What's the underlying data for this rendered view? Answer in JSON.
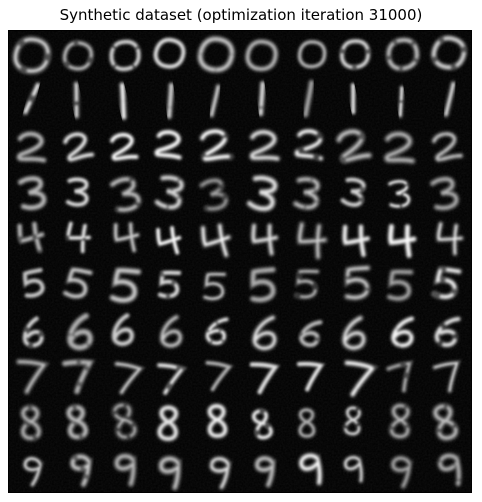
{
  "figure": {
    "title": "Synthetic dataset (optimization iteration 31000)"
  },
  "grid": {
    "rows": 10,
    "cols": 10,
    "row_digits": [
      "0",
      "1",
      "2",
      "3",
      "4",
      "5",
      "6",
      "7",
      "8",
      "9"
    ]
  }
}
